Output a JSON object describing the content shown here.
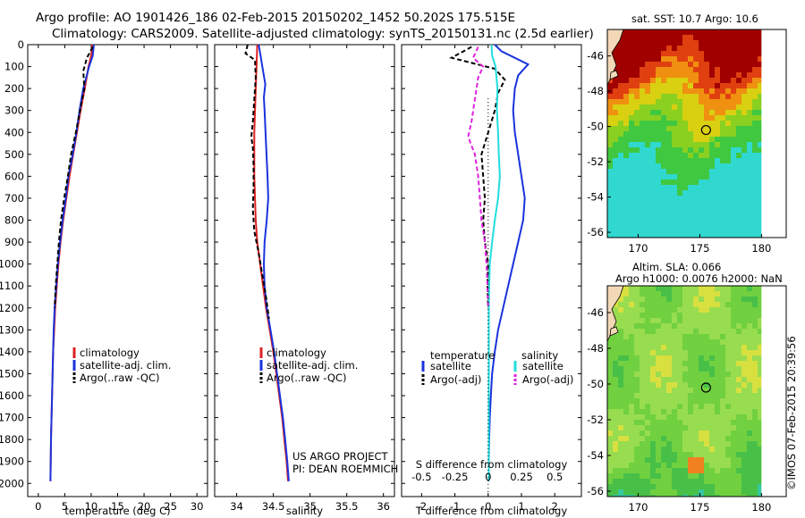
{
  "title": {
    "line1": "Argo profile: AO 1901426_186 02-Feb-2015 20150202_1452 50.202S 175.515E",
    "line2": "Climatology: CARS2009. Satellite-adjusted climatology: synTS_20150131.nc (2.5d earlier)"
  },
  "chart_data": [
    {
      "type": "line",
      "name": "temperature",
      "xlabel": "temperature (deg C)",
      "xlim": [
        -2,
        32
      ],
      "ylim": [
        0,
        2060
      ],
      "xticks": [
        "0",
        "5",
        "10",
        "15",
        "20",
        "25",
        "30"
      ],
      "yticks": [
        "0",
        "100",
        "200",
        "300",
        "400",
        "500",
        "600",
        "700",
        "800",
        "900",
        "1000",
        "1100",
        "1200",
        "1300",
        "1400",
        "1500",
        "1600",
        "1700",
        "1800",
        "1900",
        "2000"
      ],
      "legend": [
        "climatology",
        "satellite-adj. clim.",
        "Argo(..raw -QC)"
      ],
      "legend_colors": [
        "#dd2222",
        "#1a33dd",
        "#000000"
      ],
      "series": [
        {
          "name": "climatology",
          "color": "#dd2222",
          "dash": "",
          "points": [
            [
              10.2,
              0
            ],
            [
              10,
              50
            ],
            [
              9.5,
              100
            ],
            [
              8.8,
              200
            ],
            [
              8,
              300
            ],
            [
              7.3,
              400
            ],
            [
              6.6,
              500
            ],
            [
              5.9,
              600
            ],
            [
              5.3,
              700
            ],
            [
              4.7,
              800
            ],
            [
              4.2,
              900
            ],
            [
              3.8,
              1000
            ],
            [
              3.5,
              1100
            ],
            [
              3.2,
              1200
            ],
            [
              3,
              1300
            ],
            [
              2.8,
              1400
            ],
            [
              2.7,
              1500
            ],
            [
              2.6,
              1600
            ],
            [
              2.5,
              1700
            ],
            [
              2.4,
              1800
            ],
            [
              2.35,
              1900
            ],
            [
              2.3,
              1990
            ]
          ]
        },
        {
          "name": "satellite-adj. clim.",
          "color": "#1a33dd",
          "dash": "",
          "points": [
            [
              10.5,
              0
            ],
            [
              10.3,
              50
            ],
            [
              9.6,
              100
            ],
            [
              8.5,
              200
            ],
            [
              7.8,
              300
            ],
            [
              7.2,
              400
            ],
            [
              6.5,
              500
            ],
            [
              5.7,
              600
            ],
            [
              5.2,
              700
            ],
            [
              4.6,
              800
            ],
            [
              4.1,
              900
            ],
            [
              3.7,
              1000
            ],
            [
              3.4,
              1100
            ],
            [
              3.1,
              1200
            ],
            [
              2.9,
              1300
            ],
            [
              2.8,
              1400
            ],
            [
              2.7,
              1500
            ],
            [
              2.6,
              1600
            ],
            [
              2.5,
              1700
            ],
            [
              2.4,
              1800
            ],
            [
              2.35,
              1900
            ],
            [
              2.3,
              1990
            ]
          ]
        },
        {
          "name": "Argo(..raw -QC)",
          "color": "#000000",
          "dash": "5,3",
          "points": [
            [
              10.3,
              10
            ],
            [
              9.2,
              60
            ],
            [
              8.5,
              120
            ],
            [
              8.7,
              200
            ],
            [
              7.9,
              300
            ],
            [
              7.1,
              400
            ],
            [
              6.2,
              500
            ],
            [
              5.6,
              600
            ],
            [
              4.9,
              700
            ],
            [
              4.3,
              800
            ],
            [
              3.9,
              900
            ],
            [
              3.6,
              1000
            ],
            [
              3.3,
              1100
            ],
            [
              3.1,
              1200
            ]
          ]
        }
      ],
      "annotations": []
    },
    {
      "type": "line",
      "name": "salinity",
      "xlabel": "salinity",
      "xlim": [
        33.7,
        36.15
      ],
      "ylim": [
        0,
        2060
      ],
      "xticks": [
        "34",
        "34.5",
        "35",
        "35.5",
        "36"
      ],
      "legend": [
        "climatology",
        "satellite-adj. clim.",
        "Argo(..raw -QC)"
      ],
      "legend_colors": [
        "#dd2222",
        "#1a33dd",
        "#000000"
      ],
      "series": [
        {
          "name": "climatology",
          "color": "#dd2222",
          "dash": "",
          "points": [
            [
              34.28,
              0
            ],
            [
              34.27,
              100
            ],
            [
              34.26,
              200
            ],
            [
              34.25,
              300
            ],
            [
              34.24,
              400
            ],
            [
              34.24,
              500
            ],
            [
              34.24,
              600
            ],
            [
              34.25,
              700
            ],
            [
              34.26,
              800
            ],
            [
              34.28,
              900
            ],
            [
              34.32,
              1000
            ],
            [
              34.36,
              1100
            ],
            [
              34.4,
              1200
            ],
            [
              34.45,
              1300
            ],
            [
              34.5,
              1400
            ],
            [
              34.54,
              1500
            ],
            [
              34.58,
              1600
            ],
            [
              34.62,
              1700
            ],
            [
              34.65,
              1800
            ],
            [
              34.68,
              1900
            ],
            [
              34.7,
              1990
            ]
          ]
        },
        {
          "name": "satellite-adj. clim.",
          "color": "#1a33dd",
          "dash": "",
          "points": [
            [
              34.3,
              0
            ],
            [
              34.32,
              40
            ],
            [
              34.35,
              100
            ],
            [
              34.39,
              180
            ],
            [
              34.37,
              240
            ],
            [
              34.38,
              300
            ],
            [
              34.4,
              450
            ],
            [
              34.42,
              600
            ],
            [
              34.43,
              700
            ],
            [
              34.41,
              800
            ],
            [
              34.38,
              900
            ],
            [
              34.37,
              1000
            ],
            [
              34.38,
              1100
            ],
            [
              34.41,
              1200
            ],
            [
              34.46,
              1300
            ],
            [
              34.51,
              1400
            ],
            [
              34.55,
              1500
            ],
            [
              34.59,
              1600
            ],
            [
              34.63,
              1700
            ],
            [
              34.66,
              1800
            ],
            [
              34.69,
              1900
            ],
            [
              34.71,
              1990
            ]
          ]
        },
        {
          "name": "Argo(..raw -QC)",
          "color": "#000000",
          "dash": "5,3",
          "points": [
            [
              34.15,
              0
            ],
            [
              34.12,
              40
            ],
            [
              34.25,
              70
            ],
            [
              34.26,
              150
            ],
            [
              34.24,
              250
            ],
            [
              34.22,
              350
            ],
            [
              34.2,
              420
            ],
            [
              34.22,
              470
            ],
            [
              34.23,
              550
            ],
            [
              34.23,
              650
            ],
            [
              34.22,
              750
            ],
            [
              34.24,
              850
            ],
            [
              34.3,
              950
            ],
            [
              34.35,
              1050
            ],
            [
              34.4,
              1150
            ],
            [
              34.44,
              1250
            ]
          ]
        }
      ],
      "annotations": [
        "US ARGO PROJECT",
        "PI: DEAN ROEMMICH"
      ]
    },
    {
      "type": "line",
      "name": "difference",
      "xlabel": "T difference from climatology",
      "xlabel2": "S difference from climatology",
      "xlim": [
        -2.6,
        2.8
      ],
      "ylim": [
        0,
        2060
      ],
      "xticks": [
        "-2",
        "-1",
        "0",
        "1",
        "2"
      ],
      "xticks2": [
        "-0.5",
        "-0.25",
        "0",
        "0.25",
        "0.5"
      ],
      "legend_headers": [
        "temperature",
        "salinity"
      ],
      "legend": [
        "satellite",
        "Argo(-adj)",
        "satellite",
        "Argo(-adj)"
      ],
      "legend_colors": [
        "#1a33dd",
        "#000000",
        "#22dddd",
        "#dd22dd"
      ],
      "series": [
        {
          "name": "temperature satellite",
          "color": "#1a33dd",
          "dash": "",
          "points": [
            [
              0.2,
              0
            ],
            [
              0.4,
              30
            ],
            [
              1.2,
              90
            ],
            [
              0.9,
              140
            ],
            [
              0.8,
              200
            ],
            [
              0.75,
              300
            ],
            [
              0.8,
              400
            ],
            [
              0.9,
              500
            ],
            [
              1.0,
              600
            ],
            [
              1.1,
              700
            ],
            [
              1.05,
              800
            ],
            [
              0.9,
              900
            ],
            [
              0.75,
              1000
            ],
            [
              0.6,
              1100
            ],
            [
              0.45,
              1200
            ],
            [
              0.3,
              1300
            ],
            [
              0.2,
              1400
            ],
            [
              0.12,
              1500
            ],
            [
              0.08,
              1600
            ],
            [
              0.05,
              1700
            ],
            [
              0.03,
              1800
            ],
            [
              0.02,
              1900
            ],
            [
              0.02,
              1990
            ]
          ]
        },
        {
          "name": "temperature Argo(-adj)",
          "color": "#000000",
          "dash": "5,3",
          "points": [
            [
              -0.5,
              10
            ],
            [
              -1.1,
              60
            ],
            [
              0.2,
              110
            ],
            [
              0.5,
              160
            ],
            [
              0.3,
              220
            ],
            [
              0.2,
              300
            ],
            [
              0,
              400
            ],
            [
              -0.2,
              500
            ],
            [
              -0.15,
              600
            ],
            [
              -0.1,
              700
            ],
            [
              -0.15,
              800
            ],
            [
              -0.1,
              900
            ],
            [
              0,
              1000
            ],
            [
              -0.02,
              1100
            ],
            [
              0,
              1200
            ]
          ]
        },
        {
          "name": "salinity satellite",
          "color": "#22dddd",
          "dash": "",
          "points": [
            [
              0.1,
              0
            ],
            [
              0.12,
              50
            ],
            [
              0.22,
              100
            ],
            [
              0.28,
              200
            ],
            [
              0.26,
              300
            ],
            [
              0.3,
              400
            ],
            [
              0.32,
              500
            ],
            [
              0.35,
              600
            ],
            [
              0.3,
              700
            ],
            [
              0.2,
              800
            ],
            [
              0.12,
              900
            ],
            [
              0.05,
              1000
            ],
            [
              0.03,
              1100
            ],
            [
              0.02,
              1200
            ],
            [
              0.02,
              1300
            ],
            [
              0.02,
              1500
            ],
            [
              0.02,
              1700
            ],
            [
              0.02,
              1900
            ],
            [
              0.02,
              1990
            ]
          ]
        },
        {
          "name": "salinity Argo(-adj)",
          "color": "#dd22dd",
          "dash": "5,3",
          "points": [
            [
              -0.3,
              10
            ],
            [
              -0.45,
              60
            ],
            [
              -0.15,
              100
            ],
            [
              -0.3,
              150
            ],
            [
              -0.4,
              250
            ],
            [
              -0.5,
              350
            ],
            [
              -0.6,
              420
            ],
            [
              -0.4,
              500
            ],
            [
              -0.3,
              600
            ],
            [
              -0.25,
              700
            ],
            [
              -0.2,
              800
            ],
            [
              -0.1,
              900
            ],
            [
              -0.05,
              1000
            ],
            [
              -0.02,
              1100
            ],
            [
              0,
              1200
            ]
          ]
        }
      ],
      "annotations": []
    },
    {
      "type": "heatmap",
      "name": "sst-map",
      "title": "sat. SST: 10.7  Argo: 10.6",
      "xticks": [
        "170",
        "175",
        "180"
      ],
      "yticks": [
        "-46",
        "-48",
        "-50",
        "-52",
        "-54",
        "-56"
      ],
      "xlim": [
        167.5,
        182
      ],
      "ylim": [
        -56.3,
        -44.5
      ],
      "marker": [
        175.5,
        -50.2
      ]
    },
    {
      "type": "heatmap",
      "name": "sla-map",
      "title_line1": "Altim. SLA: 0.066",
      "title_line2": "Argo h1000: 0.0076 h2000: NaN",
      "xticks": [
        "170",
        "175",
        "180"
      ],
      "yticks": [
        "-46",
        "-48",
        "-50",
        "-52",
        "-54",
        "-56"
      ],
      "xlim": [
        167.5,
        182
      ],
      "ylim": [
        -56.3,
        -44.5
      ],
      "marker": [
        175.5,
        -50.2
      ]
    }
  ],
  "timestamp": "©IMOS 07-Feb-2015 20:39:56"
}
